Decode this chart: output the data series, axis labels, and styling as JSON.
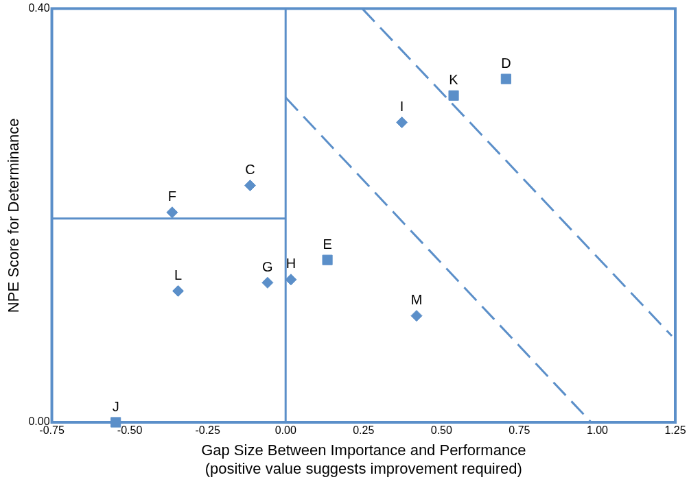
{
  "chart_data": {
    "type": "scatter",
    "xlabel": "Gap Size Between Importance and Performance\n(positive value suggests improvement required)",
    "ylabel": "NPE Score for Determinance",
    "xlim": [
      -0.75,
      1.25
    ],
    "ylim": [
      0,
      0.4
    ],
    "xticks": [
      {
        "value": -0.75,
        "label": "-0.75"
      },
      {
        "value": -0.5,
        "label": "-0.50"
      },
      {
        "value": -0.25,
        "label": "-0.25"
      },
      {
        "value": 0,
        "label": "0.00"
      },
      {
        "value": 0.25,
        "label": "0.25"
      },
      {
        "value": 0.5,
        "label": "0.50"
      },
      {
        "value": 0.75,
        "label": "0.75"
      },
      {
        "value": 1,
        "label": "1.00"
      },
      {
        "value": 1.25,
        "label": "1.25"
      }
    ],
    "yticks": [
      {
        "value": 0,
        "label": "0.00"
      },
      {
        "value": 0.4,
        "label": "0.40"
      }
    ],
    "grid": false,
    "legend": false,
    "series": [
      {
        "marker": "diamond",
        "color": "#5b8fc9",
        "x": [
          -0.345,
          -0.364,
          -0.114,
          -0.058,
          0.017,
          0.42,
          0.373
        ],
        "values": [
          0.127,
          0.203,
          0.229,
          0.135,
          0.138,
          0.103,
          0.29
        ]
      },
      {
        "marker": "square",
        "color": "#5b8fc9",
        "x": [
          -0.545,
          0.134,
          0.539,
          0.707
        ],
        "values": [
          0.0,
          0.157,
          0.316,
          0.332
        ]
      },
      {
        "type": "line",
        "marker": "none",
        "line_style": "solid",
        "color": "#5b8fc9",
        "x": [
          -0.75,
          0
        ],
        "values": [
          0.197,
          0.197
        ]
      },
      {
        "type": "line",
        "marker": "none",
        "line_style": "dashed",
        "color": "#5b8fc9",
        "x": [
          0,
          0.98
        ],
        "values": [
          0.314,
          0
        ]
      },
      {
        "type": "line",
        "marker": "none",
        "line_style": "dashed",
        "color": "#5b8fc9",
        "x": [
          0.246,
          1.239
        ],
        "values": [
          0.4,
          0.0835
        ]
      }
    ],
    "ref_lines": [
      {
        "axis": "x",
        "value": 0,
        "color": "#5b8fc9",
        "line_style": "solid"
      }
    ],
    "annotations": [
      {
        "text": "L",
        "x": -0.345,
        "y": 0.127
      },
      {
        "text": "F",
        "x": -0.364,
        "y": 0.203
      },
      {
        "text": "C",
        "x": -0.114,
        "y": 0.229
      },
      {
        "text": "G",
        "x": -0.058,
        "y": 0.135
      },
      {
        "text": "H",
        "x": 0.017,
        "y": 0.138
      },
      {
        "text": "M",
        "x": 0.42,
        "y": 0.103
      },
      {
        "text": "I",
        "x": 0.373,
        "y": 0.29
      },
      {
        "text": "J",
        "x": -0.545,
        "y": 0.0
      },
      {
        "text": "E",
        "x": 0.134,
        "y": 0.157
      },
      {
        "text": "K",
        "x": 0.539,
        "y": 0.316
      },
      {
        "text": "D",
        "x": 0.707,
        "y": 0.332
      }
    ]
  }
}
